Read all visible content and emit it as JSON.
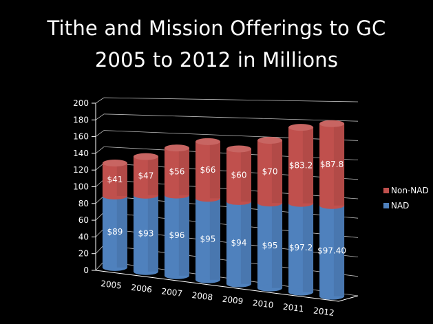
{
  "slide": {
    "title_line_1": "Tithe and Mission Offerings to GC",
    "title_line_2": "2005 to 2012 in Millions"
  },
  "chart_data": {
    "type": "bar",
    "stacked": true,
    "three_d": true,
    "title": "Tithe and Mission Offerings to GC 2005 to 2012 in Millions",
    "categories": [
      "2005",
      "2006",
      "2007",
      "2008",
      "2009",
      "2010",
      "2011",
      "2012"
    ],
    "series": [
      {
        "name": "NAD",
        "values": [
          89,
          93,
          96,
          95,
          94,
          95,
          97.2,
          97.4
        ],
        "labels": [
          "$89",
          "$93",
          "$96",
          "$95",
          "$94",
          "$95",
          "$97.2",
          "$97.40"
        ],
        "color": "#4f81bd"
      },
      {
        "name": "Non-NAD",
        "values": [
          41,
          47,
          56,
          66,
          60,
          70,
          83.2,
          87.8
        ],
        "labels": [
          "$41",
          "$47",
          "$56",
          "$66",
          "$60",
          "$70",
          "$83.2",
          "$87.8"
        ],
        "color": "#c0504d"
      }
    ],
    "ylim": [
      0,
      200
    ],
    "y_ticks": [
      "0",
      "20",
      "40",
      "60",
      "80",
      "100",
      "120",
      "140",
      "160",
      "180",
      "200"
    ],
    "grid": true,
    "legend_position": "right",
    "legend_order": [
      "Non-NAD",
      "NAD"
    ],
    "colors": {
      "background": "#000000",
      "text": "#ffffff",
      "gridline": "#bfbfbf"
    }
  }
}
